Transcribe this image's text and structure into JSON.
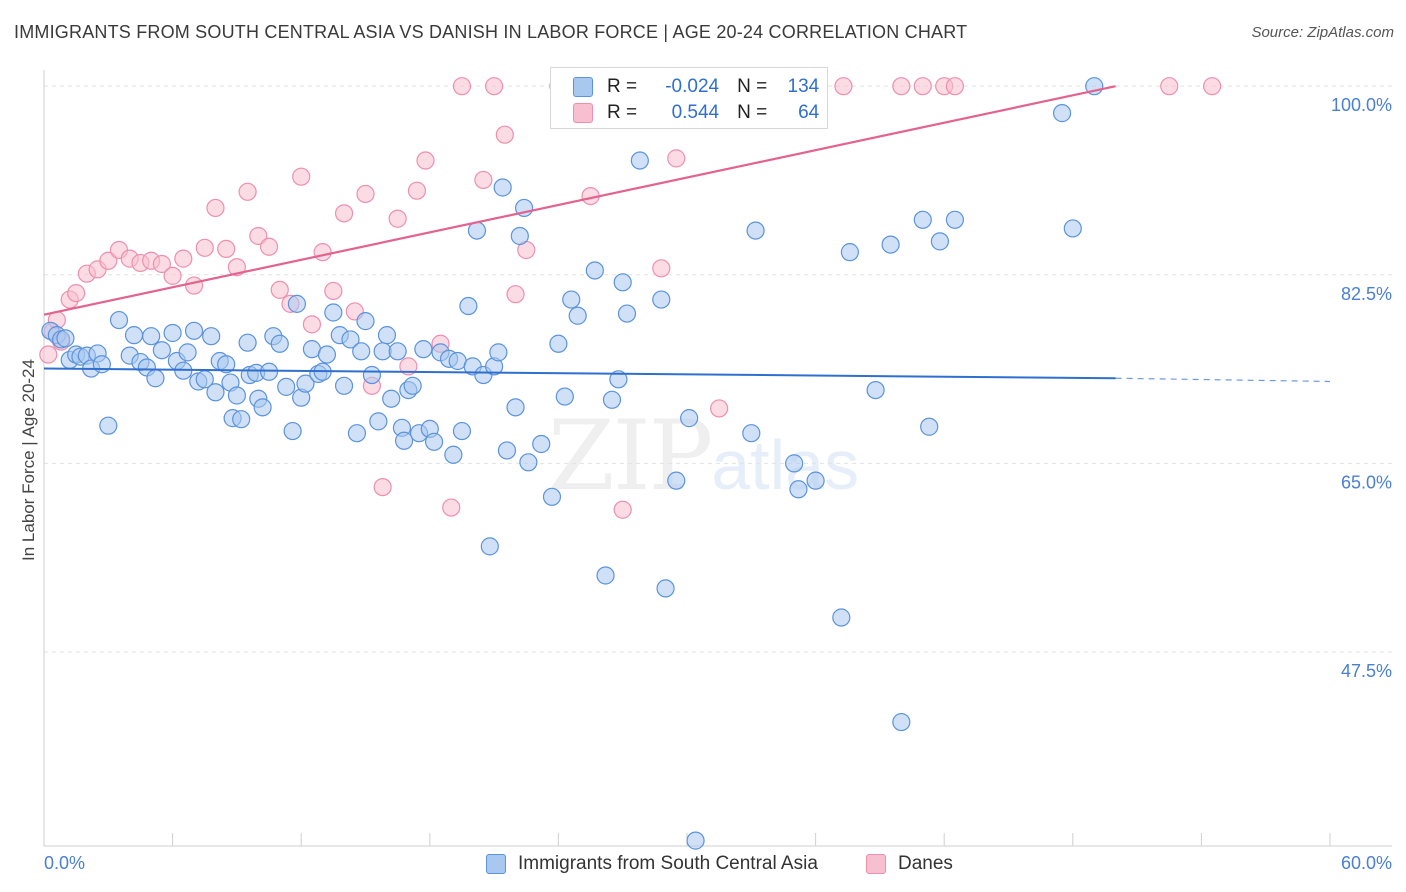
{
  "title": "IMMIGRANTS FROM SOUTH CENTRAL ASIA VS DANISH IN LABOR FORCE | AGE 20-24 CORRELATION CHART",
  "source": "Source: ZipAtlas.com",
  "watermark": {
    "zip": "ZIP",
    "atlas": "atlas"
  },
  "legend": {
    "series1": {
      "r_label": "R =",
      "r_value": "-0.024",
      "n_label": "N =",
      "n_value": "134"
    },
    "series2": {
      "r_label": "R =",
      "r_value": "0.544",
      "n_label": "N =",
      "n_value": "64"
    }
  },
  "colors": {
    "blue_fill": "#a9c8f0",
    "blue_stroke": "#5b93dc",
    "blue_line": "#2f6fd0",
    "pink_fill": "#f7bfd0",
    "pink_stroke": "#ee8fae",
    "pink_line": "#e4628e",
    "tick_label": "#4a7fd1",
    "grid": "#e2e2e2"
  },
  "chart_data": {
    "type": "scatter",
    "title": "IMMIGRANTS FROM SOUTH CENTRAL ASIA VS DANISH IN LABOR FORCE | AGE 20-24 CORRELATION CHART",
    "xlabel": "",
    "ylabel": "In Labor Force | Age 20-24",
    "xlim": [
      0,
      60
    ],
    "ylim": [
      29.5,
      101.5
    ],
    "x_tick_labels": [
      "0.0%",
      "60.0%"
    ],
    "y_ticks": [
      47.5,
      65.0,
      82.5,
      100.0
    ],
    "y_tick_labels": [
      "47.5%",
      "65.0%",
      "82.5%",
      "100.0%"
    ],
    "grid": true,
    "legend_position": "top-center",
    "series": [
      {
        "name": "Immigrants from South Central Asia",
        "r": -0.024,
        "n": 134,
        "trend": {
          "x": [
            0,
            50
          ],
          "y": [
            73.8,
            72.9
          ],
          "dashed_to_x": 60,
          "dashed_end_y": 72.6
        },
        "points": [
          [
            0.3,
            77.3
          ],
          [
            0.6,
            76.9
          ],
          [
            0.8,
            76.5
          ],
          [
            1.0,
            76.6
          ],
          [
            1.2,
            74.6
          ],
          [
            1.5,
            75.1
          ],
          [
            1.7,
            74.9
          ],
          [
            2.0,
            75.0
          ],
          [
            2.2,
            73.8
          ],
          [
            2.5,
            75.2
          ],
          [
            2.7,
            74.2
          ],
          [
            3.0,
            68.5
          ],
          [
            3.5,
            78.3
          ],
          [
            4.0,
            75.0
          ],
          [
            4.2,
            76.9
          ],
          [
            4.5,
            74.4
          ],
          [
            4.8,
            73.9
          ],
          [
            5.0,
            76.8
          ],
          [
            5.2,
            72.9
          ],
          [
            5.5,
            75.5
          ],
          [
            6.0,
            77.1
          ],
          [
            6.2,
            74.5
          ],
          [
            6.5,
            73.6
          ],
          [
            6.7,
            75.3
          ],
          [
            7.0,
            77.3
          ],
          [
            7.2,
            72.6
          ],
          [
            7.5,
            72.8
          ],
          [
            7.8,
            76.8
          ],
          [
            8.0,
            71.6
          ],
          [
            8.2,
            74.5
          ],
          [
            8.5,
            74.2
          ],
          [
            8.7,
            72.5
          ],
          [
            8.8,
            69.2
          ],
          [
            9.0,
            71.3
          ],
          [
            9.2,
            69.1
          ],
          [
            9.5,
            76.2
          ],
          [
            9.6,
            73.2
          ],
          [
            9.9,
            73.4
          ],
          [
            10.0,
            71.0
          ],
          [
            10.2,
            70.2
          ],
          [
            10.5,
            73.5
          ],
          [
            10.7,
            76.8
          ],
          [
            11.0,
            76.1
          ],
          [
            11.3,
            72.1
          ],
          [
            11.6,
            68.0
          ],
          [
            11.8,
            79.8
          ],
          [
            12.0,
            71.1
          ],
          [
            12.2,
            72.4
          ],
          [
            12.5,
            75.6
          ],
          [
            12.8,
            73.3
          ],
          [
            13.0,
            73.5
          ],
          [
            13.2,
            75.1
          ],
          [
            13.5,
            79.0
          ],
          [
            13.8,
            76.9
          ],
          [
            14.0,
            72.2
          ],
          [
            14.3,
            76.5
          ],
          [
            14.6,
            67.8
          ],
          [
            14.8,
            75.4
          ],
          [
            15.0,
            78.2
          ],
          [
            15.3,
            73.2
          ],
          [
            15.6,
            68.9
          ],
          [
            15.8,
            75.4
          ],
          [
            16.0,
            76.9
          ],
          [
            16.2,
            71.0
          ],
          [
            16.5,
            75.4
          ],
          [
            16.7,
            68.3
          ],
          [
            16.8,
            67.1
          ],
          [
            17.0,
            71.8
          ],
          [
            17.2,
            72.2
          ],
          [
            17.5,
            67.8
          ],
          [
            17.7,
            75.6
          ],
          [
            18.0,
            68.2
          ],
          [
            18.2,
            67.0
          ],
          [
            18.5,
            75.3
          ],
          [
            18.9,
            74.7
          ],
          [
            19.1,
            65.8
          ],
          [
            19.3,
            74.5
          ],
          [
            19.5,
            68.0
          ],
          [
            19.8,
            79.6
          ],
          [
            20.0,
            74.0
          ],
          [
            20.2,
            86.6
          ],
          [
            20.5,
            73.2
          ],
          [
            20.8,
            57.3
          ],
          [
            21.0,
            74.0
          ],
          [
            21.2,
            75.3
          ],
          [
            21.4,
            90.6
          ],
          [
            21.6,
            66.2
          ],
          [
            22.0,
            70.2
          ],
          [
            22.2,
            86.1
          ],
          [
            22.4,
            88.7
          ],
          [
            22.6,
            65.1
          ],
          [
            23.2,
            66.8
          ],
          [
            23.7,
            61.9
          ],
          [
            24.0,
            76.1
          ],
          [
            24.3,
            71.2
          ],
          [
            24.6,
            80.2
          ],
          [
            24.9,
            78.7
          ],
          [
            25.3,
            100.0
          ],
          [
            25.7,
            82.9
          ],
          [
            26.2,
            54.6
          ],
          [
            26.5,
            70.9
          ],
          [
            26.8,
            72.8
          ],
          [
            27.0,
            81.8
          ],
          [
            27.2,
            78.9
          ],
          [
            27.5,
            100.0
          ],
          [
            27.8,
            93.1
          ],
          [
            28.5,
            100.0
          ],
          [
            28.8,
            80.2
          ],
          [
            29.0,
            53.4
          ],
          [
            29.5,
            63.4
          ],
          [
            30.1,
            69.2
          ],
          [
            30.4,
            30.0
          ],
          [
            31.5,
            100.0
          ],
          [
            32.8,
            100.0
          ],
          [
            33.0,
            67.8
          ],
          [
            33.2,
            86.6
          ],
          [
            35.0,
            65.0
          ],
          [
            35.2,
            62.6
          ],
          [
            35.5,
            100.0
          ],
          [
            36.0,
            63.4
          ],
          [
            37.2,
            50.7
          ],
          [
            37.6,
            84.6
          ],
          [
            38.8,
            71.8
          ],
          [
            39.5,
            85.3
          ],
          [
            40.0,
            41.0
          ],
          [
            41.0,
            87.6
          ],
          [
            41.3,
            68.4
          ],
          [
            41.8,
            85.6
          ],
          [
            42.5,
            87.6
          ],
          [
            47.5,
            97.5
          ],
          [
            48.0,
            86.8
          ],
          [
            49.0,
            100.0
          ]
        ]
      },
      {
        "name": "Danes",
        "r": 0.544,
        "n": 64,
        "trend": {
          "x": [
            0,
            50
          ],
          "y": [
            78.8,
            100.0
          ]
        },
        "points": [
          [
            0.2,
            75.1
          ],
          [
            0.4,
            77.2
          ],
          [
            0.6,
            78.3
          ],
          [
            0.8,
            76.3
          ],
          [
            1.2,
            80.2
          ],
          [
            1.5,
            80.8
          ],
          [
            2.0,
            82.6
          ],
          [
            2.5,
            83.0
          ],
          [
            3.0,
            83.8
          ],
          [
            3.5,
            84.8
          ],
          [
            4.0,
            84.0
          ],
          [
            4.5,
            83.6
          ],
          [
            5.0,
            83.8
          ],
          [
            5.5,
            83.5
          ],
          [
            6.0,
            82.4
          ],
          [
            6.5,
            84.0
          ],
          [
            7.0,
            81.5
          ],
          [
            7.5,
            85.0
          ],
          [
            8.0,
            88.7
          ],
          [
            8.5,
            84.9
          ],
          [
            9.0,
            83.2
          ],
          [
            9.5,
            90.2
          ],
          [
            10.0,
            86.1
          ],
          [
            10.5,
            85.1
          ],
          [
            11.0,
            81.1
          ],
          [
            11.5,
            79.8
          ],
          [
            12.0,
            91.6
          ],
          [
            12.5,
            77.9
          ],
          [
            13.0,
            84.6
          ],
          [
            13.5,
            81.0
          ],
          [
            14.0,
            88.2
          ],
          [
            14.5,
            79.1
          ],
          [
            15.0,
            90.0
          ],
          [
            15.3,
            72.2
          ],
          [
            15.8,
            62.8
          ],
          [
            16.5,
            87.7
          ],
          [
            17.0,
            74.0
          ],
          [
            17.4,
            90.3
          ],
          [
            17.8,
            93.1
          ],
          [
            18.5,
            76.1
          ],
          [
            19.0,
            60.9
          ],
          [
            19.5,
            100.0
          ],
          [
            20.5,
            91.3
          ],
          [
            21.0,
            100.0
          ],
          [
            21.5,
            95.5
          ],
          [
            22.0,
            80.7
          ],
          [
            22.5,
            84.8
          ],
          [
            24.0,
            100.0
          ],
          [
            25.5,
            89.8
          ],
          [
            27.0,
            60.7
          ],
          [
            28.0,
            100.0
          ],
          [
            28.8,
            83.1
          ],
          [
            29.5,
            93.3
          ],
          [
            30.0,
            100.0
          ],
          [
            31.5,
            70.1
          ],
          [
            35.5,
            100.0
          ],
          [
            36.0,
            100.0
          ],
          [
            37.3,
            100.0
          ],
          [
            40.0,
            100.0
          ],
          [
            41.0,
            100.0
          ],
          [
            42.0,
            100.0
          ],
          [
            42.5,
            100.0
          ],
          [
            52.5,
            100.0
          ],
          [
            54.5,
            100.0
          ]
        ]
      }
    ]
  },
  "bottom_legend": {
    "blue_label": "Immigrants from South Central Asia",
    "pink_label": "Danes"
  }
}
